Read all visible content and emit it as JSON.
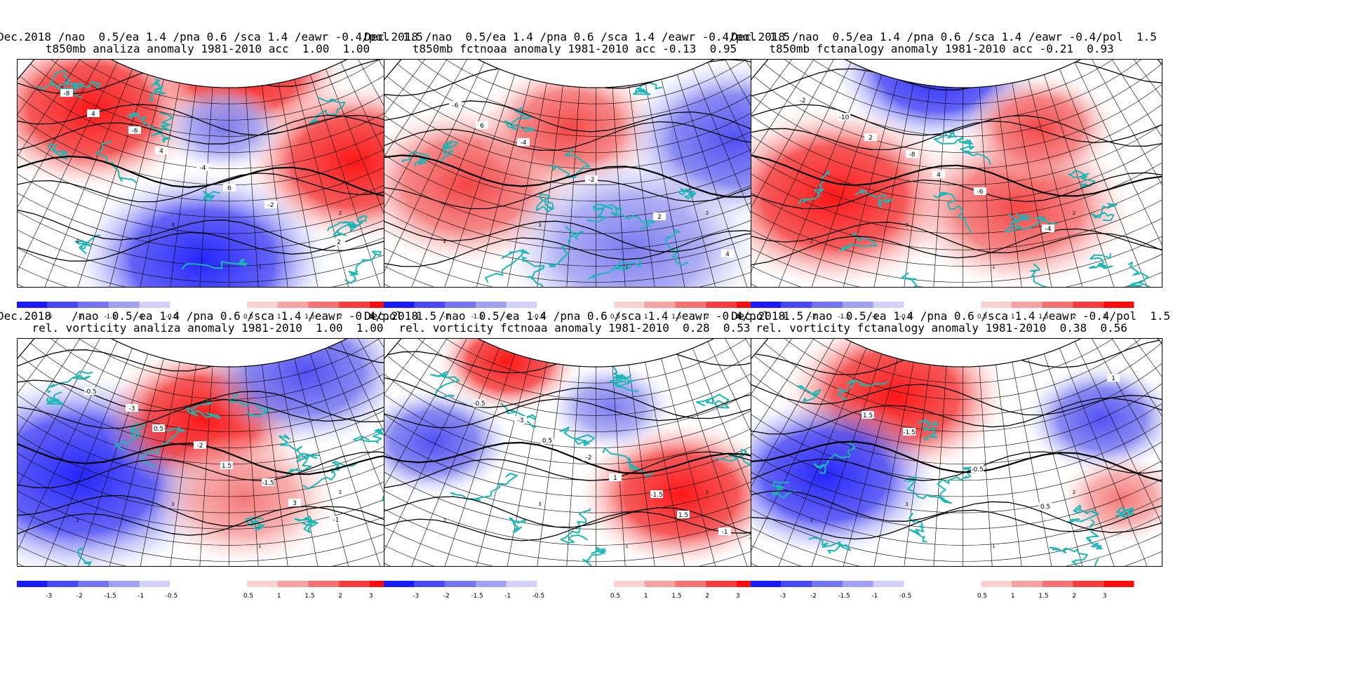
{
  "panels": [
    {
      "title1": "Dec.2018 /nao  0.5/ea 1.4 /pna 0.6 /sca 1.4 /eawr -0.4/pol  1.5",
      "title2": "t850mb analiza anomaly 1981-2010 acc  1.00  1.00",
      "shading": [
        {
          "fx": 0.18,
          "fy": 0.22,
          "r": 0.22,
          "sign": "pos",
          "level": 3
        },
        {
          "fx": 0.55,
          "fy": 0.05,
          "r": 0.2,
          "sign": "pos",
          "level": 3
        },
        {
          "fx": 0.82,
          "fy": 0.45,
          "r": 0.22,
          "sign": "pos",
          "level": 3
        },
        {
          "fx": 0.45,
          "fy": 0.88,
          "r": 0.25,
          "sign": "neg",
          "level": 3
        },
        {
          "fx": 0.5,
          "fy": 0.3,
          "r": 0.12,
          "sign": "neg",
          "level": 1
        }
      ],
      "contour_labels": [
        "-8",
        "-6",
        "-4",
        "-2",
        "2",
        "4",
        "4",
        "6"
      ],
      "grid_labels": [
        "1",
        "2",
        "3",
        "1",
        "2",
        "3"
      ]
    },
    {
      "title1": "Dec.2018 /nao  0.5/ea 1.4 /pna 0.6 /sca 1.4 /eawr -0.4/pol  1.5",
      "title2": "t850mb fctnoaa anomaly 1981-2010 acc -0.13  0.95",
      "shading": [
        {
          "fx": 0.2,
          "fy": 0.55,
          "r": 0.22,
          "sign": "pos",
          "level": 2
        },
        {
          "fx": 0.45,
          "fy": 0.3,
          "r": 0.18,
          "sign": "pos",
          "level": 2
        },
        {
          "fx": 0.85,
          "fy": 0.35,
          "r": 0.22,
          "sign": "neg",
          "level": 2
        },
        {
          "fx": 0.6,
          "fy": 0.82,
          "r": 0.25,
          "sign": "neg",
          "level": 1
        }
      ],
      "contour_labels": [
        "-6",
        "-4",
        "-2",
        "2",
        "4",
        "6"
      ],
      "grid_labels": [
        "1",
        "2",
        "3",
        "1",
        "2",
        "3"
      ]
    },
    {
      "title1": "Dec.2018 /nao  0.5/ea 1.4 /pna 0.6 /sca 1.4 /eawr -0.4/pol  1.5",
      "title2": "t850mb fctanalogy anomaly 1981-2010 acc -0.21  0.93",
      "shading": [
        {
          "fx": 0.45,
          "fy": 0.05,
          "r": 0.2,
          "sign": "neg",
          "level": 3
        },
        {
          "fx": 0.2,
          "fy": 0.6,
          "r": 0.25,
          "sign": "pos",
          "level": 3
        },
        {
          "fx": 0.65,
          "fy": 0.65,
          "r": 0.22,
          "sign": "pos",
          "level": 2
        },
        {
          "fx": 0.7,
          "fy": 0.3,
          "r": 0.15,
          "sign": "pos",
          "level": 2
        }
      ],
      "contour_labels": [
        "-10",
        "-8",
        "-6",
        "-4",
        "-2",
        "2",
        "4"
      ],
      "grid_labels": [
        "1",
        "2",
        "3",
        "1",
        "2",
        "3"
      ]
    },
    {
      "title1": "Dec.2018   /nao  0.5/ea 1.4 /pna 0.6 /sca 1.4 /eawr -0.4/pol  1.5",
      "title2": "rel. vorticity analiza anomaly 1981-2010  1.00  1.00",
      "shading": [
        {
          "fx": 0.15,
          "fy": 0.6,
          "r": 0.28,
          "sign": "neg",
          "level": 3
        },
        {
          "fx": 0.45,
          "fy": 0.35,
          "r": 0.2,
          "sign": "pos",
          "level": 3
        },
        {
          "fx": 0.7,
          "fy": 0.15,
          "r": 0.2,
          "sign": "neg",
          "level": 2
        },
        {
          "fx": 0.55,
          "fy": 0.7,
          "r": 0.18,
          "sign": "pos",
          "level": 1
        }
      ],
      "contour_labels": [
        "-3",
        "-2",
        "-1.5",
        "-1",
        "-0.5",
        "0.5",
        "1.5",
        "3"
      ],
      "grid_labels": [
        "1",
        "2",
        "3",
        "1",
        "2",
        "3"
      ]
    },
    {
      "title1": "Dec.2018   /nao  0.5/ea 1.4 /pna 0.6 /sca 1.4 /eawr -0.4/pol  1.5",
      "title2": "rel. vorticity fctnoaa anomaly 1981-2010  0.28  0.53",
      "shading": [
        {
          "fx": 0.3,
          "fy": 0.1,
          "r": 0.14,
          "sign": "pos",
          "level": 3
        },
        {
          "fx": 0.12,
          "fy": 0.45,
          "r": 0.15,
          "sign": "neg",
          "level": 2
        },
        {
          "fx": 0.72,
          "fy": 0.68,
          "r": 0.2,
          "sign": "pos",
          "level": 3
        },
        {
          "fx": 0.55,
          "fy": 0.3,
          "r": 0.12,
          "sign": "neg",
          "level": 1
        }
      ],
      "contour_labels": [
        "-3",
        "-2",
        "-1.5",
        "-1",
        "-0.5",
        "0.5",
        "1",
        "1.5"
      ],
      "grid_labels": [
        "1",
        "2",
        "3",
        "1",
        "2",
        "3"
      ]
    },
    {
      "title1": "Dec.2018   /nao  0.5/ea 1.4 /pna 0.6 /sca 1.4 /eawr -0.4/pol  1.5",
      "title2": "rel. vorticity fctanalogy anomaly 1981-2010  0.38  0.56",
      "shading": [
        {
          "fx": 0.35,
          "fy": 0.25,
          "r": 0.22,
          "sign": "pos",
          "level": 3
        },
        {
          "fx": 0.18,
          "fy": 0.6,
          "r": 0.22,
          "sign": "neg",
          "level": 3
        },
        {
          "fx": 0.85,
          "fy": 0.35,
          "r": 0.15,
          "sign": "neg",
          "level": 2
        },
        {
          "fx": 0.9,
          "fy": 0.7,
          "r": 0.12,
          "sign": "pos",
          "level": 1
        }
      ],
      "contour_labels": [
        "-1.5",
        "-0.5",
        "0.5",
        "1",
        "1.5"
      ],
      "grid_labels": [
        "1",
        "2",
        "3",
        "1",
        "2",
        "3"
      ]
    }
  ],
  "colorbar": {
    "neg_labels": [
      "-3",
      "-2",
      "-1.5",
      "-1",
      "-0.5"
    ],
    "pos_labels": [
      "0.5",
      "1",
      "1.5",
      "2",
      "3"
    ],
    "neg_colors": [
      "#1a1aff",
      "#4848f5",
      "#7474f0",
      "#a0a0f2",
      "#d2d2f8"
    ],
    "pos_colors": [
      "#fbd2d2",
      "#f7a2a2",
      "#f47272",
      "#f43c3c",
      "#ff0a0a"
    ]
  },
  "colors": {
    "coast": "#1bb7b7",
    "contour": "#000000"
  }
}
